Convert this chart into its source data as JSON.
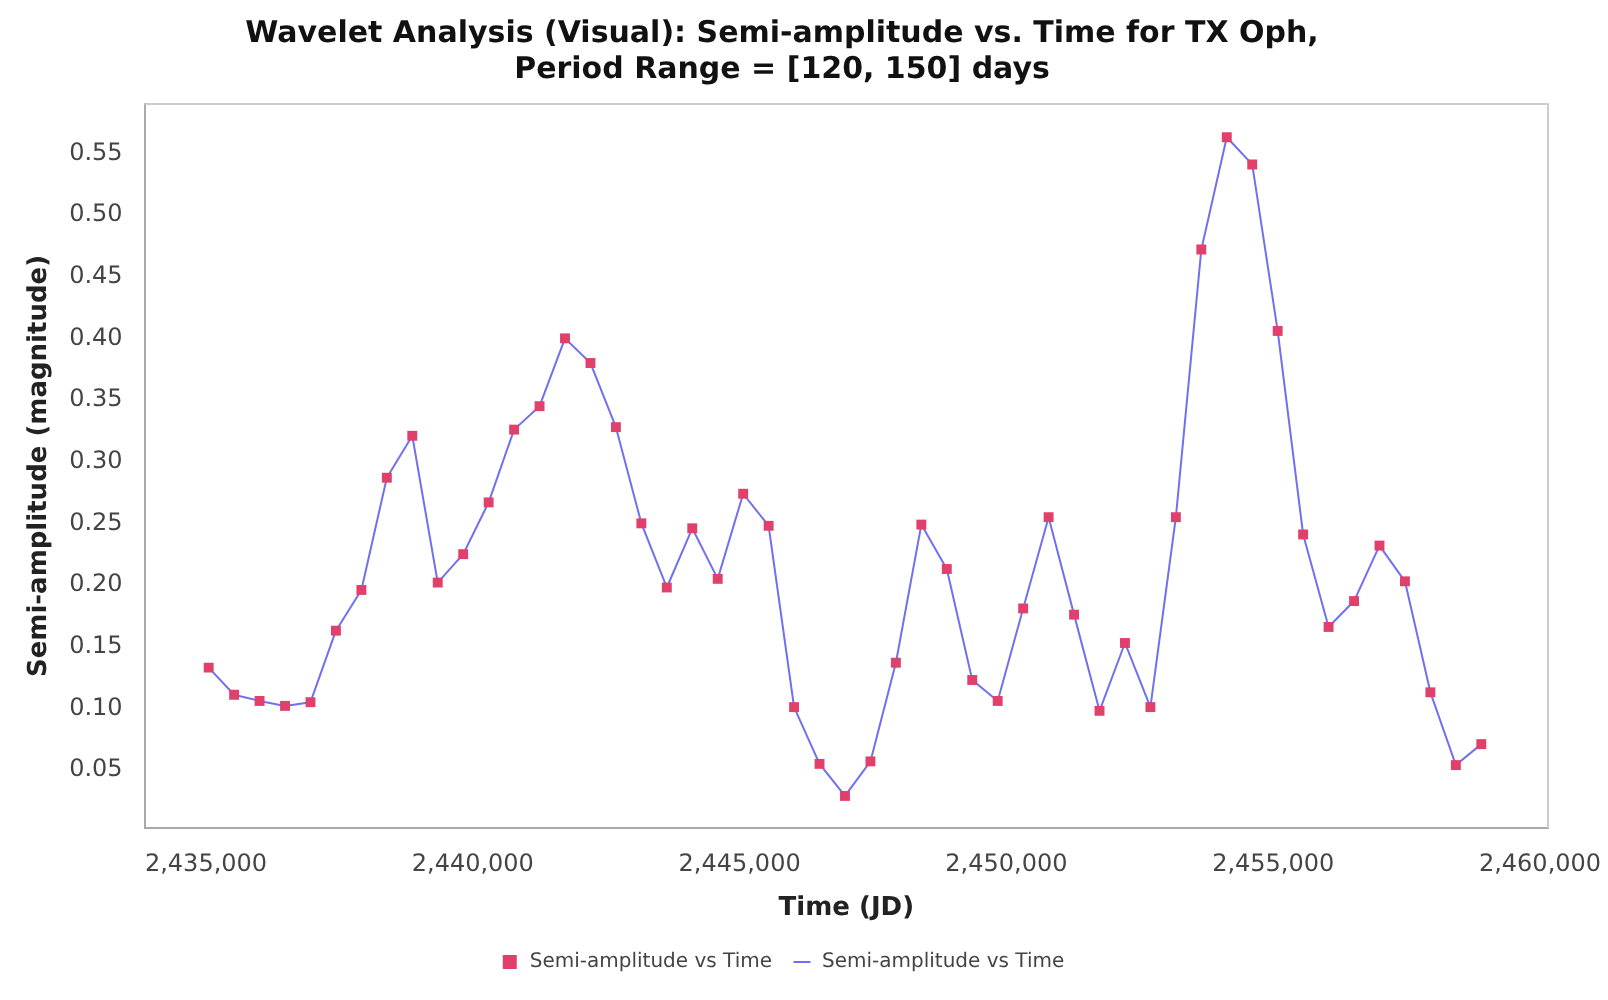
{
  "chart_data": {
    "type": "line",
    "title": "Wavelet Analysis (Visual): Semi-amplitude vs. Time for TX Oph,\nPeriod Range = [120, 150] days",
    "xlabel": "Time (JD)",
    "ylabel": "Semi-amplitude (magnitude)",
    "x": [
      2435050,
      2435527,
      2436004,
      2436481,
      2436958,
      2437435,
      2437912,
      2438389,
      2438866,
      2439343,
      2439820,
      2440297,
      2440774,
      2441251,
      2441728,
      2442205,
      2442682,
      2443159,
      2443636,
      2444113,
      2444590,
      2445067,
      2445544,
      2446021,
      2446498,
      2446975,
      2447452,
      2447929,
      2448406,
      2448883,
      2449360,
      2449837,
      2450314,
      2450791,
      2451268,
      2451745,
      2452222,
      2452699,
      2453176,
      2453653,
      2454130,
      2454607,
      2455084,
      2455561,
      2456038,
      2456515,
      2456992,
      2457469,
      2457946,
      2458423,
      2458900
    ],
    "series": [
      {
        "name": "Semi-amplitude vs Time",
        "type": "scatter",
        "marker": "square",
        "color": "#e0406a",
        "values": [
          0.133,
          0.111,
          0.106,
          0.102,
          0.105,
          0.163,
          0.196,
          0.287,
          0.321,
          0.202,
          0.225,
          0.267,
          0.326,
          0.345,
          0.4,
          0.38,
          0.328,
          0.25,
          0.198,
          0.246,
          0.205,
          0.274,
          0.248,
          0.101,
          0.055,
          0.029,
          0.057,
          0.137,
          0.249,
          0.213,
          0.123,
          0.106,
          0.181,
          0.255,
          0.176,
          0.098,
          0.153,
          0.101,
          0.255,
          0.472,
          0.563,
          0.541,
          0.406,
          0.241,
          0.166,
          0.187,
          0.232,
          0.203,
          0.113,
          0.054,
          0.071
        ]
      },
      {
        "name": "Semi-amplitude vs Time",
        "marker": "none",
        "color": "#7070f0",
        "values": [
          0.133,
          0.111,
          0.106,
          0.102,
          0.105,
          0.163,
          0.196,
          0.287,
          0.321,
          0.202,
          0.225,
          0.267,
          0.326,
          0.345,
          0.4,
          0.38,
          0.328,
          0.25,
          0.198,
          0.246,
          0.205,
          0.274,
          0.248,
          0.101,
          0.055,
          0.029,
          0.057,
          0.137,
          0.249,
          0.213,
          0.123,
          0.106,
          0.181,
          0.255,
          0.176,
          0.098,
          0.153,
          0.101,
          0.255,
          0.472,
          0.563,
          0.541,
          0.406,
          0.241,
          0.166,
          0.187,
          0.232,
          0.203,
          0.113,
          0.054,
          0.071
        ]
      }
    ],
    "xlim": [
      2433850,
      2460150
    ],
    "ylim": [
      0.003,
      0.59
    ],
    "xticks": [
      {
        "value": 2435000,
        "label": "2,435,000"
      },
      {
        "value": 2440000,
        "label": "2,440,000"
      },
      {
        "value": 2445000,
        "label": "2,445,000"
      },
      {
        "value": 2450000,
        "label": "2,450,000"
      },
      {
        "value": 2455000,
        "label": "2,455,000"
      },
      {
        "value": 2460000,
        "label": "2,460,000"
      }
    ],
    "yticks": [
      0.05,
      {
        "value": 0.1,
        "label": "0.10"
      },
      0.15,
      {
        "value": 0.2,
        "label": "0.20"
      },
      0.25,
      {
        "value": 0.3,
        "label": "0.30"
      },
      0.35,
      {
        "value": 0.4,
        "label": "0.40"
      },
      0.45,
      {
        "value": 0.5,
        "label": "0.50"
      },
      0.55
    ],
    "grid": false,
    "legend": "bottom"
  }
}
